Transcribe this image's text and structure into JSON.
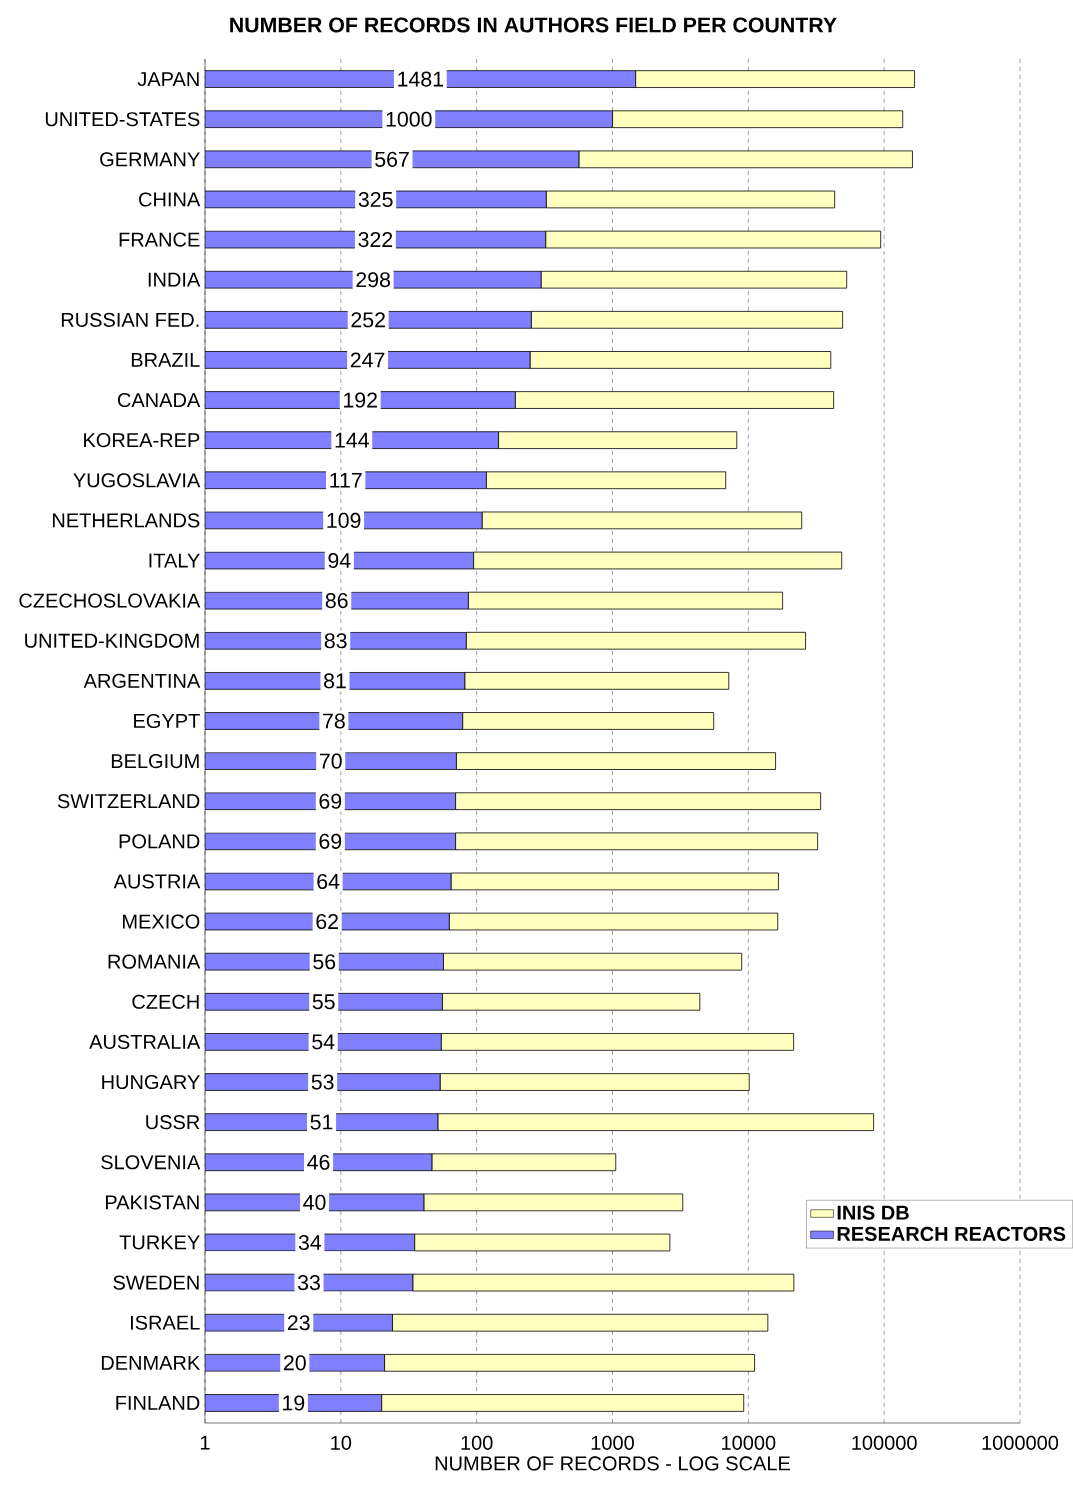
{
  "chart_data": {
    "type": "bar",
    "orientation": "horizontal",
    "stacked": true,
    "log": "x",
    "title": "NUMBER OF RECORDS IN AUTHORS FIELD PER COUNTRY",
    "xlabel": "NUMBER OF RECORDS - LOG SCALE",
    "categories": [
      "JAPAN",
      "UNITED-STATES",
      "GERMANY",
      "CHINA",
      "FRANCE",
      "INDIA",
      "RUSSIAN FED.",
      "BRAZIL",
      "CANADA",
      "KOREA-REP",
      "YUGOSLAVIA",
      "NETHERLANDS",
      "ITALY",
      "CZECHOSLOVAKIA",
      "UNITED-KINGDOM",
      "ARGENTINA",
      "EGYPT",
      "BELGIUM",
      "SWITZERLAND",
      "POLAND",
      "AUSTRIA",
      "MEXICO",
      "ROMANIA",
      "CZECH",
      "AUSTRALIA",
      "HUNGARY",
      "USSR",
      "SLOVENIA",
      "PAKISTAN",
      "TURKEY",
      "SWEDEN",
      "ISRAEL",
      "DENMARK",
      "FINLAND"
    ],
    "series": [
      {
        "name": "RESEARCH REACTORS",
        "color": "#8080ff",
        "values": [
          1481,
          1000,
          567,
          325,
          322,
          298,
          252,
          247,
          192,
          144,
          117,
          109,
          94,
          86,
          83,
          81,
          78,
          70,
          69,
          69,
          64,
          62,
          56,
          55,
          54,
          53,
          51,
          46,
          40,
          34,
          33,
          23,
          20,
          19
        ],
        "value_labels": [
          "1481",
          "1000",
          "567",
          "325",
          "322",
          "298",
          "252",
          "247",
          "192",
          "144",
          "117",
          "109",
          "94",
          "86",
          "83",
          "81",
          "78",
          "70",
          "69",
          "69",
          "64",
          "62",
          "56",
          "55",
          "54",
          "53",
          "51",
          "46",
          "40",
          "34",
          "33",
          "23",
          "20",
          "19"
        ]
      },
      {
        "name": "INIS DB",
        "color": "#ffffc0",
        "values": [
          166000,
          136000,
          161000,
          42900,
          94000,
          52700,
          49200,
          40200,
          42300,
          8080,
          6700,
          24600,
          48600,
          17800,
          26300,
          7100,
          5480,
          15800,
          34000,
          32300,
          16600,
          16400,
          8880,
          4340,
          21500,
          10100,
          83600,
          1010,
          3250,
          2610,
          21600,
          13900,
          11100,
          9230
        ]
      }
    ],
    "xlim": [
      1,
      1000000
    ],
    "xticks": [
      1,
      10,
      100,
      1000,
      10000,
      100000,
      1000000
    ],
    "grid": "x",
    "legend": "bottom right"
  }
}
